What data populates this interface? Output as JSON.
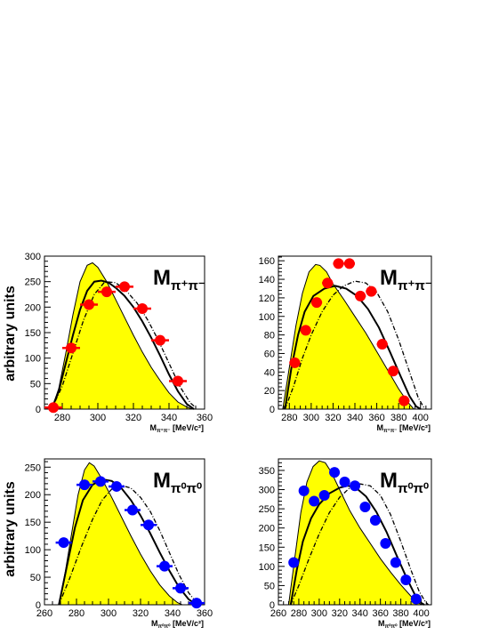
{
  "ylabel_text": "arbitrary units",
  "colors": {
    "fill": "#ffff00",
    "red": "#ff0000",
    "blue": "#0000ff",
    "line": "#000000"
  },
  "chart_data": [
    {
      "id": "tl",
      "type": "scatter",
      "title_main": "M",
      "title_sub": "π⁺π⁻",
      "xlabel": "M",
      "xlabel_sub": "π⁺π⁻",
      "xlabel_unit": " [MeV/c²]",
      "xlim": [
        270,
        360
      ],
      "ylim": [
        0,
        300
      ],
      "xticks": [
        280,
        300,
        320,
        340,
        360
      ],
      "yticks": [
        0,
        50,
        100,
        150,
        200,
        250,
        300
      ],
      "marker_color": "red",
      "points": [
        {
          "x": 275,
          "y": 3
        },
        {
          "x": 285,
          "y": 120
        },
        {
          "x": 295,
          "y": 205
        },
        {
          "x": 305,
          "y": 230
        },
        {
          "x": 315,
          "y": 240
        },
        {
          "x": 325,
          "y": 197
        },
        {
          "x": 335,
          "y": 135
        },
        {
          "x": 345,
          "y": 55
        }
      ],
      "filled_curve": [
        [
          274,
          0
        ],
        [
          278,
          40
        ],
        [
          282,
          110
        ],
        [
          286,
          185
        ],
        [
          290,
          250
        ],
        [
          294,
          282
        ],
        [
          297,
          287
        ],
        [
          300,
          278
        ],
        [
          305,
          250
        ],
        [
          310,
          215
        ],
        [
          315,
          180
        ],
        [
          320,
          145
        ],
        [
          325,
          112
        ],
        [
          330,
          82
        ],
        [
          335,
          56
        ],
        [
          340,
          32
        ],
        [
          345,
          14
        ],
        [
          350,
          4
        ],
        [
          353,
          0
        ]
      ],
      "solid_curve": [
        [
          274,
          0
        ],
        [
          278,
          35
        ],
        [
          282,
          90
        ],
        [
          286,
          145
        ],
        [
          290,
          195
        ],
        [
          294,
          232
        ],
        [
          298,
          250
        ],
        [
          302,
          252
        ],
        [
          306,
          248
        ],
        [
          310,
          238
        ],
        [
          315,
          222
        ],
        [
          320,
          200
        ],
        [
          325,
          172
        ],
        [
          330,
          140
        ],
        [
          335,
          105
        ],
        [
          340,
          68
        ],
        [
          345,
          35
        ],
        [
          350,
          10
        ],
        [
          354,
          0
        ]
      ],
      "dashed_curve": [
        [
          274,
          0
        ],
        [
          280,
          45
        ],
        [
          286,
          110
        ],
        [
          292,
          175
        ],
        [
          298,
          225
        ],
        [
          304,
          250
        ],
        [
          310,
          248
        ],
        [
          316,
          232
        ],
        [
          322,
          208
        ],
        [
          328,
          175
        ],
        [
          334,
          135
        ],
        [
          340,
          90
        ],
        [
          346,
          45
        ],
        [
          352,
          12
        ],
        [
          356,
          0
        ]
      ]
    },
    {
      "id": "tr",
      "type": "scatter",
      "title_main": "M",
      "title_sub": "π⁺π⁻",
      "xlabel": "M",
      "xlabel_sub": "π⁺π⁻",
      "xlabel_unit": " [MeV/c²]",
      "xlim": [
        270,
        410
      ],
      "ylim": [
        0,
        165
      ],
      "xticks": [
        280,
        300,
        320,
        340,
        360,
        380,
        400
      ],
      "yticks": [
        0,
        20,
        40,
        60,
        80,
        100,
        120,
        140,
        160
      ],
      "marker_color": "red",
      "points": [
        {
          "x": 285,
          "y": 50
        },
        {
          "x": 295,
          "y": 85
        },
        {
          "x": 305,
          "y": 115
        },
        {
          "x": 315,
          "y": 136
        },
        {
          "x": 325,
          "y": 157
        },
        {
          "x": 335,
          "y": 157
        },
        {
          "x": 345,
          "y": 122
        },
        {
          "x": 355,
          "y": 127
        },
        {
          "x": 365,
          "y": 70
        },
        {
          "x": 375,
          "y": 41
        },
        {
          "x": 385,
          "y": 9
        }
      ],
      "filled_curve": [
        [
          274,
          0
        ],
        [
          280,
          45
        ],
        [
          286,
          90
        ],
        [
          292,
          125
        ],
        [
          298,
          148
        ],
        [
          304,
          156
        ],
        [
          308,
          155
        ],
        [
          314,
          148
        ],
        [
          320,
          135
        ],
        [
          330,
          118
        ],
        [
          340,
          100
        ],
        [
          350,
          82
        ],
        [
          360,
          62
        ],
        [
          370,
          42
        ],
        [
          380,
          22
        ],
        [
          388,
          8
        ],
        [
          394,
          0
        ]
      ],
      "solid_curve": [
        [
          276,
          0
        ],
        [
          282,
          45
        ],
        [
          288,
          80
        ],
        [
          294,
          105
        ],
        [
          302,
          122
        ],
        [
          312,
          130
        ],
        [
          322,
          133
        ],
        [
          332,
          130
        ],
        [
          342,
          122
        ],
        [
          352,
          108
        ],
        [
          362,
          88
        ],
        [
          372,
          62
        ],
        [
          382,
          35
        ],
        [
          390,
          14
        ],
        [
          396,
          3
        ],
        [
          400,
          0
        ]
      ],
      "dashed_curve": [
        [
          276,
          0
        ],
        [
          284,
          25
        ],
        [
          292,
          55
        ],
        [
          300,
          80
        ],
        [
          310,
          105
        ],
        [
          320,
          123
        ],
        [
          330,
          133
        ],
        [
          340,
          138
        ],
        [
          350,
          136
        ],
        [
          360,
          126
        ],
        [
          370,
          105
        ],
        [
          380,
          75
        ],
        [
          390,
          40
        ],
        [
          398,
          12
        ],
        [
          404,
          0
        ]
      ]
    },
    {
      "id": "bl",
      "type": "scatter",
      "title_main": "M",
      "title_sub": "π⁰π⁰",
      "xlabel": "M",
      "xlabel_sub": "π⁰π⁰",
      "xlabel_unit": " [MeV/c²]",
      "xlim": [
        260,
        360
      ],
      "ylim": [
        0,
        265
      ],
      "xticks": [
        260,
        280,
        300,
        320,
        340,
        360
      ],
      "yticks": [
        0,
        50,
        100,
        150,
        200,
        250
      ],
      "marker_color": "blue",
      "points": [
        {
          "x": 272,
          "y": 113
        },
        {
          "x": 285,
          "y": 218
        },
        {
          "x": 295,
          "y": 224
        },
        {
          "x": 305,
          "y": 215
        },
        {
          "x": 315,
          "y": 172
        },
        {
          "x": 325,
          "y": 145
        },
        {
          "x": 335,
          "y": 70
        },
        {
          "x": 345,
          "y": 30
        },
        {
          "x": 355,
          "y": 3
        }
      ],
      "filled_curve": [
        [
          269,
          0
        ],
        [
          273,
          60
        ],
        [
          277,
          130
        ],
        [
          281,
          200
        ],
        [
          285,
          245
        ],
        [
          288,
          258
        ],
        [
          291,
          252
        ],
        [
          296,
          228
        ],
        [
          302,
          195
        ],
        [
          308,
          160
        ],
        [
          314,
          125
        ],
        [
          320,
          92
        ],
        [
          326,
          62
        ],
        [
          332,
          36
        ],
        [
          338,
          16
        ],
        [
          343,
          4
        ],
        [
          346,
          0
        ]
      ],
      "solid_curve": [
        [
          269,
          0
        ],
        [
          274,
          70
        ],
        [
          279,
          140
        ],
        [
          284,
          190
        ],
        [
          290,
          218
        ],
        [
          296,
          228
        ],
        [
          302,
          225
        ],
        [
          308,
          212
        ],
        [
          314,
          190
        ],
        [
          320,
          162
        ],
        [
          326,
          130
        ],
        [
          332,
          95
        ],
        [
          338,
          62
        ],
        [
          344,
          32
        ],
        [
          350,
          10
        ],
        [
          355,
          0
        ]
      ],
      "dashed_curve": [
        [
          269,
          0
        ],
        [
          276,
          50
        ],
        [
          283,
          105
        ],
        [
          290,
          155
        ],
        [
          296,
          190
        ],
        [
          302,
          210
        ],
        [
          308,
          217
        ],
        [
          314,
          212
        ],
        [
          320,
          195
        ],
        [
          326,
          170
        ],
        [
          332,
          135
        ],
        [
          338,
          95
        ],
        [
          344,
          55
        ],
        [
          350,
          22
        ],
        [
          356,
          0
        ]
      ]
    },
    {
      "id": "br",
      "type": "scatter",
      "title_main": "M",
      "title_sub": "π⁰π⁰",
      "xlabel": "M",
      "xlabel_sub": "π⁰π⁰",
      "xlabel_unit": " [MeV/c²]",
      "xlim": [
        260,
        410
      ],
      "ylim": [
        0,
        380
      ],
      "xticks": [
        260,
        280,
        300,
        320,
        340,
        360,
        380,
        400
      ],
      "yticks": [
        0,
        50,
        100,
        150,
        200,
        250,
        300,
        350
      ],
      "marker_color": "blue",
      "points": [
        {
          "x": 275,
          "y": 110
        },
        {
          "x": 285,
          "y": 297
        },
        {
          "x": 295,
          "y": 270
        },
        {
          "x": 305,
          "y": 285
        },
        {
          "x": 315,
          "y": 345
        },
        {
          "x": 325,
          "y": 320
        },
        {
          "x": 335,
          "y": 310
        },
        {
          "x": 345,
          "y": 255
        },
        {
          "x": 355,
          "y": 220
        },
        {
          "x": 365,
          "y": 160
        },
        {
          "x": 375,
          "y": 110
        },
        {
          "x": 385,
          "y": 65
        },
        {
          "x": 395,
          "y": 15
        }
      ],
      "filled_curve": [
        [
          270,
          0
        ],
        [
          276,
          120
        ],
        [
          282,
          240
        ],
        [
          288,
          320
        ],
        [
          294,
          360
        ],
        [
          300,
          375
        ],
        [
          306,
          370
        ],
        [
          312,
          345
        ],
        [
          320,
          300
        ],
        [
          330,
          245
        ],
        [
          340,
          200
        ],
        [
          350,
          160
        ],
        [
          360,
          120
        ],
        [
          370,
          85
        ],
        [
          380,
          52
        ],
        [
          390,
          22
        ],
        [
          397,
          5
        ],
        [
          401,
          0
        ]
      ],
      "solid_curve": [
        [
          272,
          0
        ],
        [
          278,
          90
        ],
        [
          284,
          165
        ],
        [
          292,
          225
        ],
        [
          300,
          262
        ],
        [
          310,
          290
        ],
        [
          320,
          305
        ],
        [
          328,
          310
        ],
        [
          336,
          305
        ],
        [
          346,
          282
        ],
        [
          356,
          242
        ],
        [
          366,
          190
        ],
        [
          376,
          128
        ],
        [
          386,
          68
        ],
        [
          394,
          25
        ],
        [
          400,
          5
        ],
        [
          403,
          0
        ]
      ],
      "dashed_curve": [
        [
          272,
          0
        ],
        [
          280,
          50
        ],
        [
          290,
          120
        ],
        [
          300,
          185
        ],
        [
          310,
          240
        ],
        [
          320,
          280
        ],
        [
          330,
          305
        ],
        [
          340,
          315
        ],
        [
          350,
          310
        ],
        [
          360,
          285
        ],
        [
          370,
          235
        ],
        [
          380,
          165
        ],
        [
          390,
          90
        ],
        [
          398,
          35
        ],
        [
          404,
          8
        ],
        [
          407,
          0
        ]
      ]
    }
  ]
}
